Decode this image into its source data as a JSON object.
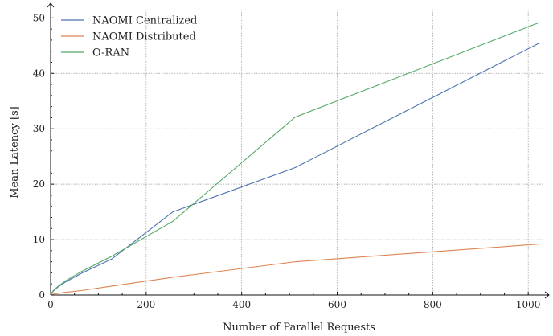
{
  "chart_data": {
    "type": "line",
    "xlabel": "Number of Parallel Requests",
    "ylabel": "Mean Latency [s]",
    "xlim": [
      0,
      1030
    ],
    "ylim": [
      0,
      51.5
    ],
    "xticks": [
      0,
      200,
      400,
      600,
      800,
      1000
    ],
    "yticks": [
      0,
      10,
      20,
      30,
      40,
      50
    ],
    "grid": true,
    "legend_position": "top-left",
    "series": [
      {
        "name": "NAOMI Centralized",
        "color": "#4c72b0",
        "x": [
          1,
          8,
          16,
          32,
          64,
          128,
          256,
          512,
          1024
        ],
        "y": [
          0.3,
          0.9,
          1.5,
          2.4,
          3.9,
          6.5,
          15.0,
          23.0,
          45.5
        ]
      },
      {
        "name": "NAOMI Distributed",
        "color": "#dd8452",
        "x": [
          1,
          8,
          16,
          32,
          64,
          128,
          256,
          512,
          1024
        ],
        "y": [
          0.1,
          0.2,
          0.3,
          0.5,
          0.8,
          1.6,
          3.2,
          6.0,
          9.2
        ]
      },
      {
        "name": "O-RAN",
        "color": "#55a868",
        "x": [
          1,
          8,
          16,
          32,
          64,
          128,
          256,
          512,
          1024
        ],
        "y": [
          0.3,
          1.0,
          1.6,
          2.6,
          4.2,
          7.0,
          13.3,
          32.1,
          49.2
        ]
      }
    ]
  }
}
